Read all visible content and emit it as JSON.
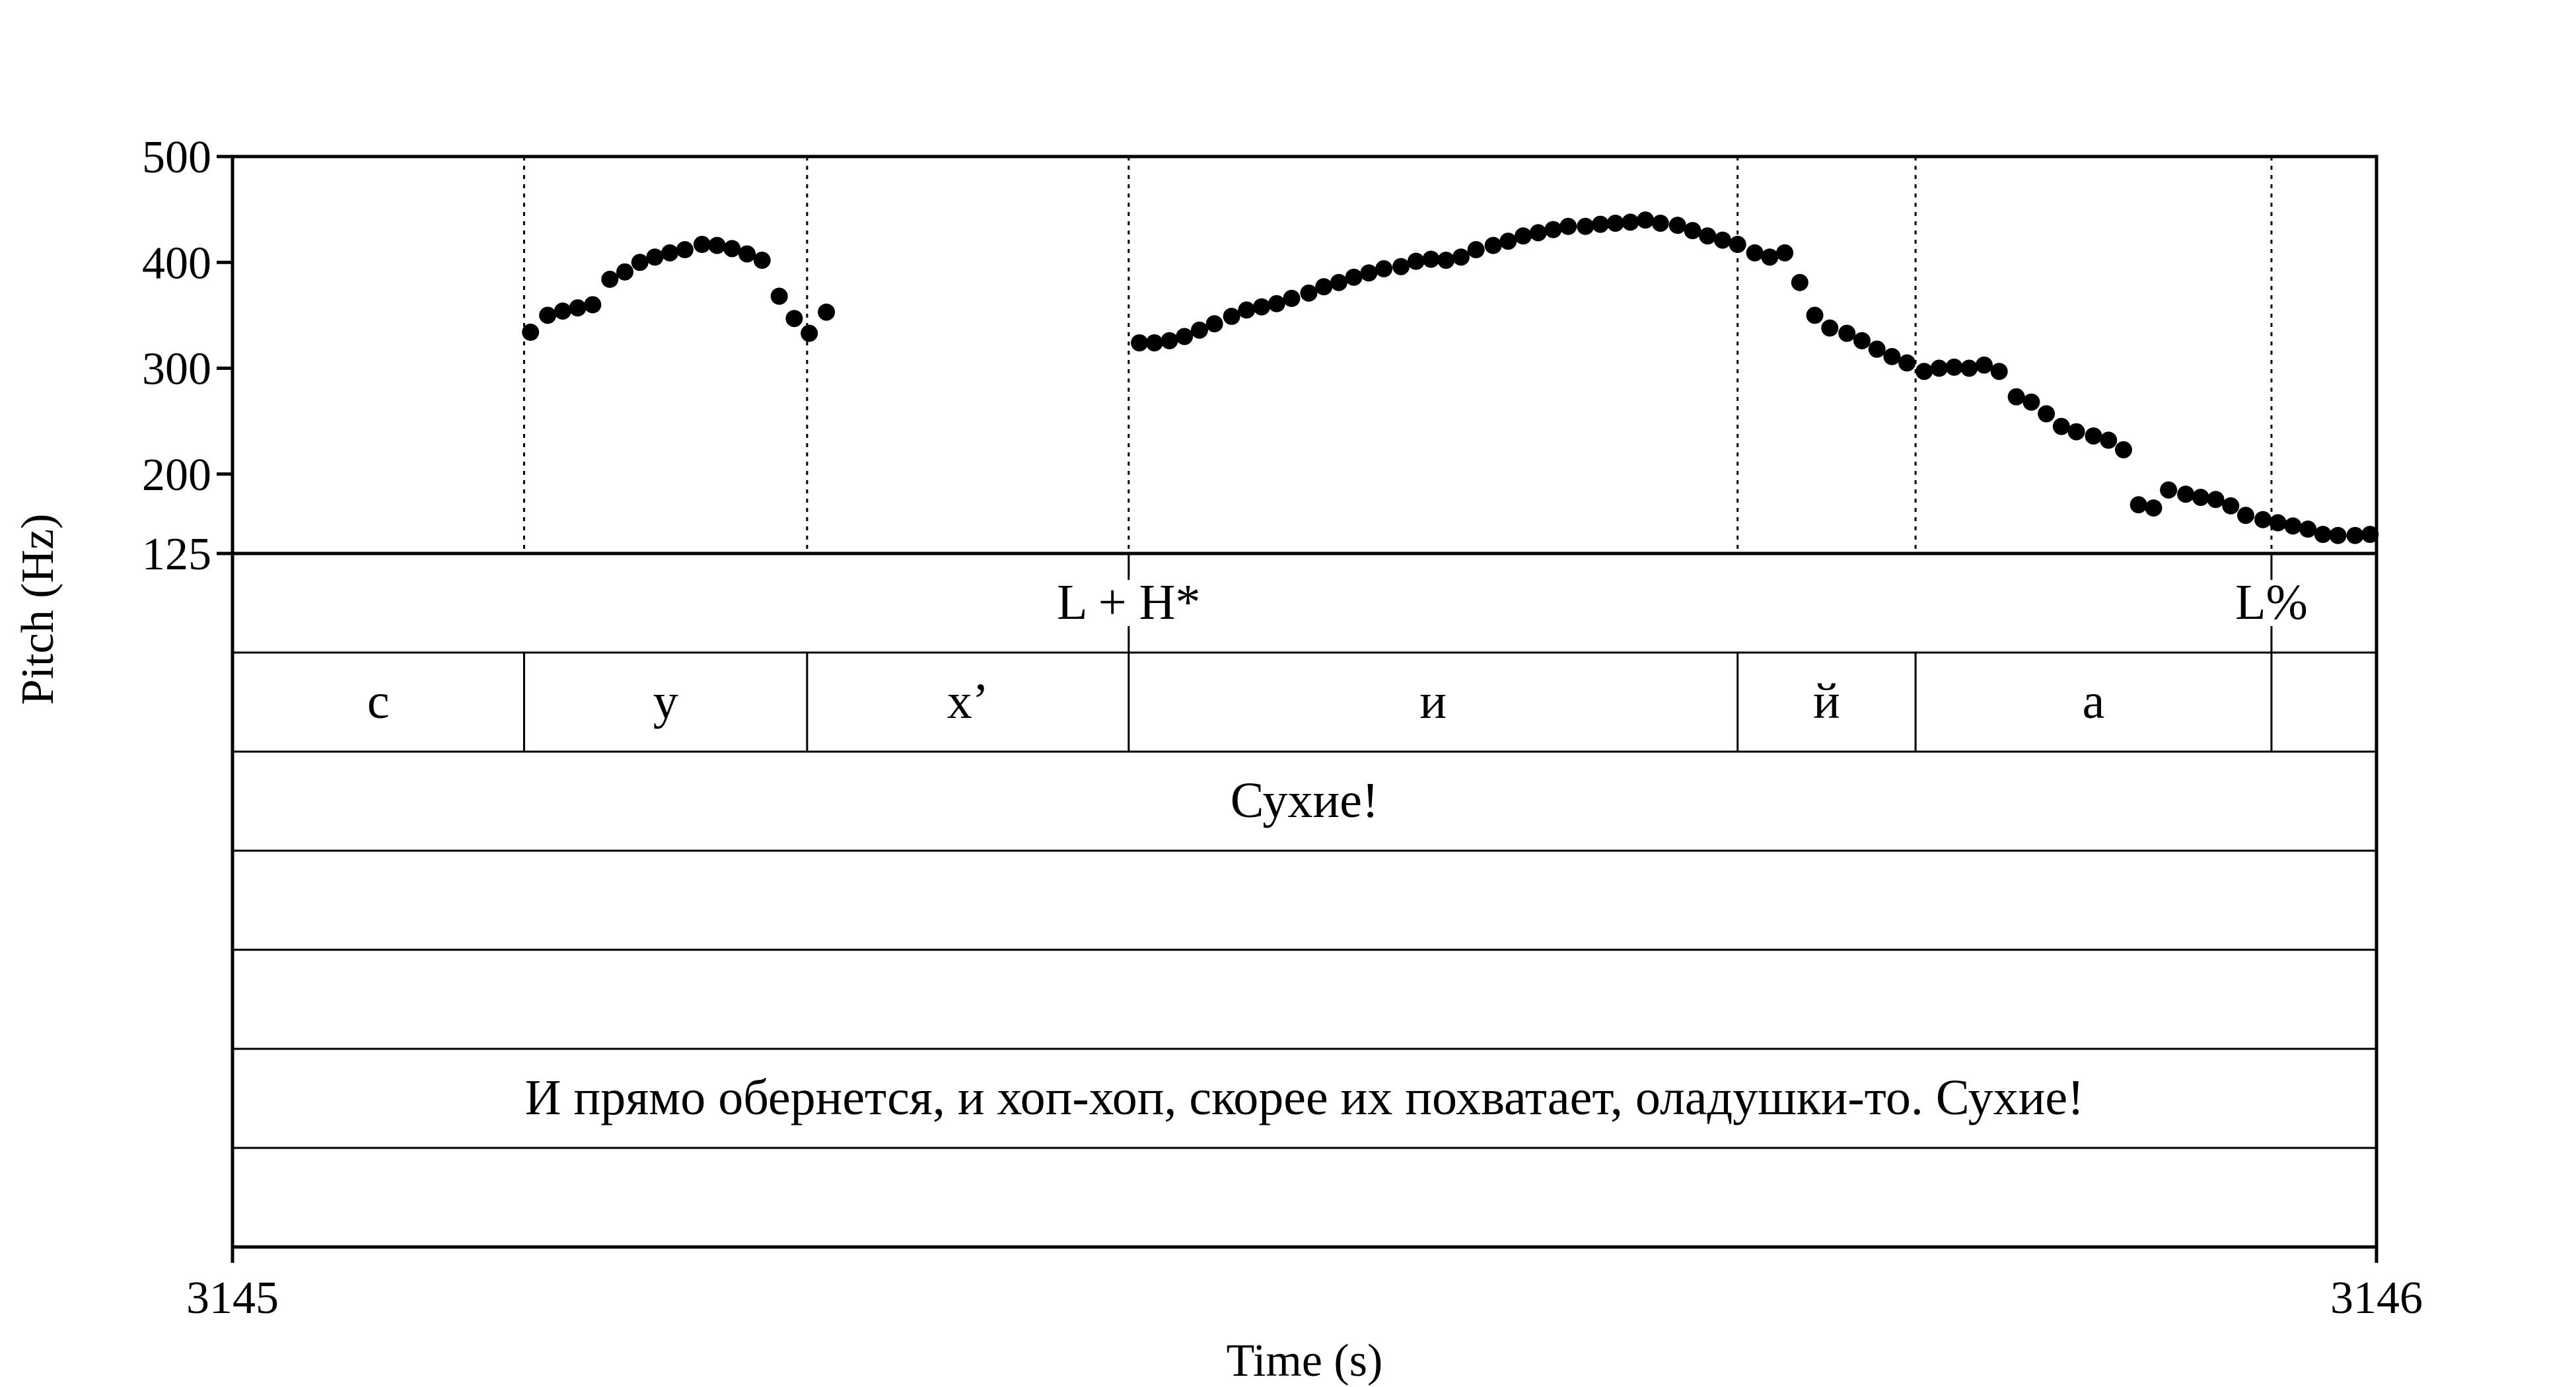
{
  "chart_data": {
    "type": "scatter",
    "xlabel": "Time (s)",
    "ylabel": "Pitch (Hz)",
    "xlim": [
      3145,
      3146
    ],
    "ylim": [
      125,
      500
    ],
    "x_ticks": [
      "3145",
      "3146"
    ],
    "y_ticks": [
      {
        "value": 500,
        "label": "500"
      },
      {
        "value": 400,
        "label": "400"
      },
      {
        "value": 300,
        "label": "300"
      },
      {
        "value": 200,
        "label": "200"
      },
      {
        "value": 125,
        "label": "125"
      }
    ],
    "pitch_points": [
      [
        3145.139,
        334
      ],
      [
        3145.147,
        350
      ],
      [
        3145.154,
        354
      ],
      [
        3145.161,
        357
      ],
      [
        3145.168,
        360
      ],
      [
        3145.176,
        384
      ],
      [
        3145.183,
        391
      ],
      [
        3145.19,
        400
      ],
      [
        3145.197,
        405
      ],
      [
        3145.204,
        409
      ],
      [
        3145.211,
        412
      ],
      [
        3145.219,
        417
      ],
      [
        3145.226,
        416
      ],
      [
        3145.233,
        413
      ],
      [
        3145.24,
        408
      ],
      [
        3145.247,
        402
      ],
      [
        3145.255,
        368
      ],
      [
        3145.262,
        347
      ],
      [
        3145.269,
        333
      ],
      [
        3145.277,
        353
      ],
      [
        3145.423,
        324
      ],
      [
        3145.43,
        324
      ],
      [
        3145.437,
        326
      ],
      [
        3145.444,
        330
      ],
      [
        3145.451,
        336
      ],
      [
        3145.458,
        342
      ],
      [
        3145.466,
        349
      ],
      [
        3145.473,
        355
      ],
      [
        3145.48,
        358
      ],
      [
        3145.487,
        361
      ],
      [
        3145.494,
        366
      ],
      [
        3145.502,
        371
      ],
      [
        3145.509,
        377
      ],
      [
        3145.516,
        381
      ],
      [
        3145.523,
        386
      ],
      [
        3145.53,
        390
      ],
      [
        3145.537,
        394
      ],
      [
        3145.545,
        396
      ],
      [
        3145.552,
        401
      ],
      [
        3145.559,
        403
      ],
      [
        3145.566,
        402
      ],
      [
        3145.573,
        405
      ],
      [
        3145.58,
        412
      ],
      [
        3145.588,
        416
      ],
      [
        3145.595,
        420
      ],
      [
        3145.602,
        425
      ],
      [
        3145.609,
        428
      ],
      [
        3145.616,
        431
      ],
      [
        3145.623,
        434
      ],
      [
        3145.631,
        434
      ],
      [
        3145.638,
        436
      ],
      [
        3145.645,
        437
      ],
      [
        3145.652,
        438
      ],
      [
        3145.659,
        440
      ],
      [
        3145.666,
        437
      ],
      [
        3145.674,
        435
      ],
      [
        3145.681,
        430
      ],
      [
        3145.688,
        425
      ],
      [
        3145.695,
        421
      ],
      [
        3145.702,
        417
      ],
      [
        3145.71,
        409
      ],
      [
        3145.717,
        405
      ],
      [
        3145.724,
        409
      ],
      [
        3145.731,
        381
      ],
      [
        3145.738,
        350
      ],
      [
        3145.745,
        338
      ],
      [
        3145.753,
        333
      ],
      [
        3145.76,
        326
      ],
      [
        3145.767,
        318
      ],
      [
        3145.774,
        311
      ],
      [
        3145.781,
        305
      ],
      [
        3145.789,
        297
      ],
      [
        3145.796,
        300
      ],
      [
        3145.803,
        301
      ],
      [
        3145.81,
        300
      ],
      [
        3145.817,
        303
      ],
      [
        3145.824,
        297
      ],
      [
        3145.832,
        273
      ],
      [
        3145.839,
        268
      ],
      [
        3145.846,
        257
      ],
      [
        3145.853,
        245
      ],
      [
        3145.86,
        240
      ],
      [
        3145.868,
        236
      ],
      [
        3145.875,
        232
      ],
      [
        3145.882,
        223
      ],
      [
        3145.889,
        171
      ],
      [
        3145.896,
        168
      ],
      [
        3145.903,
        185
      ],
      [
        3145.911,
        181
      ],
      [
        3145.918,
        178
      ],
      [
        3145.925,
        176
      ],
      [
        3145.932,
        170
      ],
      [
        3145.939,
        161
      ],
      [
        3145.947,
        157
      ],
      [
        3145.954,
        154
      ],
      [
        3145.961,
        151
      ],
      [
        3145.968,
        148
      ],
      [
        3145.975,
        143
      ],
      [
        3145.982,
        142
      ],
      [
        3145.99,
        142
      ],
      [
        3145.997,
        143
      ]
    ],
    "boundaries": [
      3145.136,
      3145.268,
      3145.418,
      3145.702,
      3145.785,
      3145.951
    ],
    "tiers": [
      {
        "intervals": [],
        "points": [
          {
            "t": 3145.418,
            "label": "L + H*"
          },
          {
            "t": 3145.951,
            "label": "L%"
          }
        ]
      },
      {
        "intervals": [
          {
            "start": 3145.0,
            "end": 3145.136,
            "label": "с"
          },
          {
            "start": 3145.136,
            "end": 3145.268,
            "label": "у"
          },
          {
            "start": 3145.268,
            "end": 3145.418,
            "label": "х’"
          },
          {
            "start": 3145.418,
            "end": 3145.702,
            "label": "и"
          },
          {
            "start": 3145.702,
            "end": 3145.785,
            "label": "й"
          },
          {
            "start": 3145.785,
            "end": 3145.951,
            "label": "а"
          },
          {
            "start": 3145.951,
            "end": 3146.0,
            "label": ""
          }
        ],
        "points": []
      },
      {
        "intervals": [
          {
            "start": 3145.0,
            "end": 3146.0,
            "label": "Сухие!"
          }
        ],
        "points": []
      },
      {
        "intervals": [],
        "points": []
      },
      {
        "intervals": [],
        "points": []
      },
      {
        "intervals": [
          {
            "start": 3145.0,
            "end": 3146.0,
            "label": "И прямо обернется, и хоп-хоп, скорее их похватает, оладушки-то. Сухие!"
          }
        ],
        "points": []
      },
      {
        "intervals": [],
        "points": []
      }
    ]
  }
}
